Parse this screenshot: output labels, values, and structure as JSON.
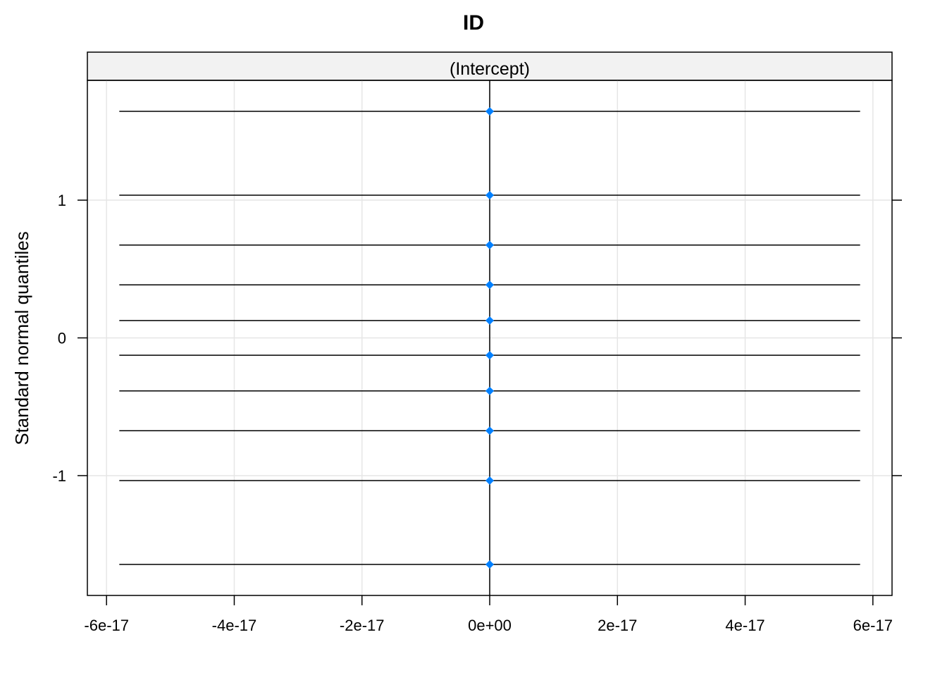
{
  "chart_data": {
    "type": "scatter",
    "title": "ID",
    "panel_label": "(Intercept)",
    "xlabel": "",
    "ylabel": "Standard normal quantiles",
    "xlim": [
      -6.3e-17,
      6.3e-17
    ],
    "ylim": [
      -1.87,
      1.87
    ],
    "x_ticks": [
      -6e-17,
      -4e-17,
      -2e-17,
      0,
      2e-17,
      4e-17,
      6e-17
    ],
    "x_tick_labels": [
      "-6e-17",
      "-4e-17",
      "-2e-17",
      "0e+00",
      "2e-17",
      "4e-17",
      "6e-17"
    ],
    "y_ticks": [
      -1,
      0,
      1
    ],
    "y_tick_labels": [
      "-1",
      "0",
      "1"
    ],
    "grid": true,
    "reference_line_x": 0,
    "interval_range": [
      -5.8e-17,
      5.8e-17
    ],
    "points": [
      {
        "x": 0,
        "y": -1.645,
        "lower": -5.8e-17,
        "upper": 5.8e-17
      },
      {
        "x": 0,
        "y": -1.036,
        "lower": -5.8e-17,
        "upper": 5.8e-17
      },
      {
        "x": 0,
        "y": -0.674,
        "lower": -5.8e-17,
        "upper": 5.8e-17
      },
      {
        "x": 0,
        "y": -0.385,
        "lower": -5.8e-17,
        "upper": 5.8e-17
      },
      {
        "x": 0,
        "y": -0.126,
        "lower": -5.8e-17,
        "upper": 5.8e-17
      },
      {
        "x": 0,
        "y": 0.126,
        "lower": -5.8e-17,
        "upper": 5.8e-17
      },
      {
        "x": 0,
        "y": 0.385,
        "lower": -5.8e-17,
        "upper": 5.8e-17
      },
      {
        "x": 0,
        "y": 0.674,
        "lower": -5.8e-17,
        "upper": 5.8e-17
      },
      {
        "x": 0,
        "y": 1.036,
        "lower": -5.8e-17,
        "upper": 5.8e-17
      },
      {
        "x": 0,
        "y": 1.645,
        "lower": -5.8e-17,
        "upper": 5.8e-17
      }
    ],
    "colors": {
      "point": "#0080ff",
      "interval": "#000000",
      "grid": "#e6e6e6",
      "strip_fill": "#f2f2f2",
      "frame": "#000000"
    }
  }
}
